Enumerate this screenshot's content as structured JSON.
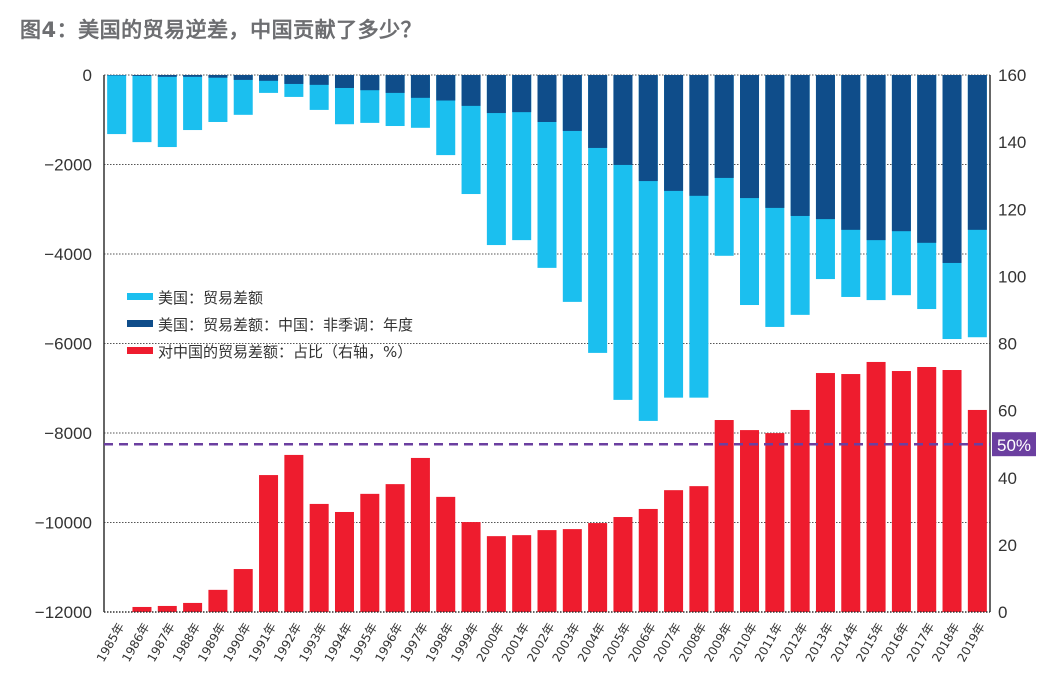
{
  "title": "图4：美国的贸易逆差，中国贡献了多少？",
  "chart_data": {
    "type": "bar",
    "title": "图4：美国的贸易逆差，中国贡献了多少？",
    "categories": [
      "1985年",
      "1986年",
      "1987年",
      "1988年",
      "1989年",
      "1990年",
      "1991年",
      "1992年",
      "1993年",
      "1994年",
      "1995年",
      "1996年",
      "1997年",
      "1998年",
      "1999年",
      "2000年",
      "2001年",
      "2002年",
      "2003年",
      "2004年",
      "2005年",
      "2006年",
      "2007年",
      "2008年",
      "2009年",
      "2010年",
      "2011年",
      "2012年",
      "2013年",
      "2014年",
      "2015年",
      "2016年",
      "2017年",
      "2018年",
      "2019年"
    ],
    "series": [
      {
        "name": "美国：贸易差额",
        "axis": "left",
        "color": "#1bbfef",
        "values": [
          -1320,
          -1500,
          -1610,
          -1230,
          -1050,
          -890,
          -400,
          -490,
          -780,
          -1100,
          -1070,
          -1140,
          -1180,
          -1790,
          -2660,
          -3800,
          -3690,
          -4310,
          -5070,
          -6210,
          -7260,
          -7730,
          -7210,
          -7210,
          -4040,
          -5140,
          -5630,
          -5360,
          -4560,
          -4960,
          -5030,
          -4920,
          -5230,
          -5900,
          -5860
        ]
      },
      {
        "name": "美国：贸易差额：中国：非季调：年度",
        "axis": "left",
        "color": "#0f4d8a",
        "values": [
          -10,
          -20,
          -40,
          -40,
          -60,
          -110,
          -130,
          -200,
          -220,
          -290,
          -340,
          -400,
          -510,
          -570,
          -690,
          -850,
          -830,
          -1050,
          -1250,
          -1630,
          -2010,
          -2370,
          -2590,
          -2700,
          -2300,
          -2750,
          -2970,
          -3150,
          -3220,
          -3460,
          -3690,
          -3490,
          -3750,
          -4200,
          -3460
        ]
      },
      {
        "name": "对中国的贸易差额：占比（右轴，%）",
        "axis": "right",
        "color": "#ee1c2e",
        "values": [
          0,
          1.5,
          1.8,
          2.7,
          6.6,
          12.8,
          40.8,
          46.8,
          32.2,
          29.8,
          35.2,
          38.1,
          45.9,
          34.3,
          26.8,
          22.6,
          22.9,
          24.4,
          24.7,
          26.5,
          28.3,
          30.7,
          36.3,
          37.5,
          57.2,
          54.2,
          53.3,
          60.2,
          71.2,
          70.9,
          74.5,
          71.8,
          73.0,
          72.1,
          60.2
        ]
      }
    ],
    "left_axis": {
      "ylim": [
        -12000,
        0
      ],
      "ticks": [
        "0",
        "-2000",
        "-4000",
        "-6000",
        "-8000",
        "-10000",
        "-12000"
      ]
    },
    "right_axis": {
      "ylim": [
        0,
        160
      ],
      "ticks": [
        "160",
        "140",
        "120",
        "100",
        "80",
        "60",
        "40",
        "20",
        "0"
      ]
    },
    "reference_line": {
      "value": 50,
      "label": "50%",
      "color": "#6b3fa0",
      "axis": "right"
    },
    "grid": true,
    "legend_position": "center-left"
  }
}
